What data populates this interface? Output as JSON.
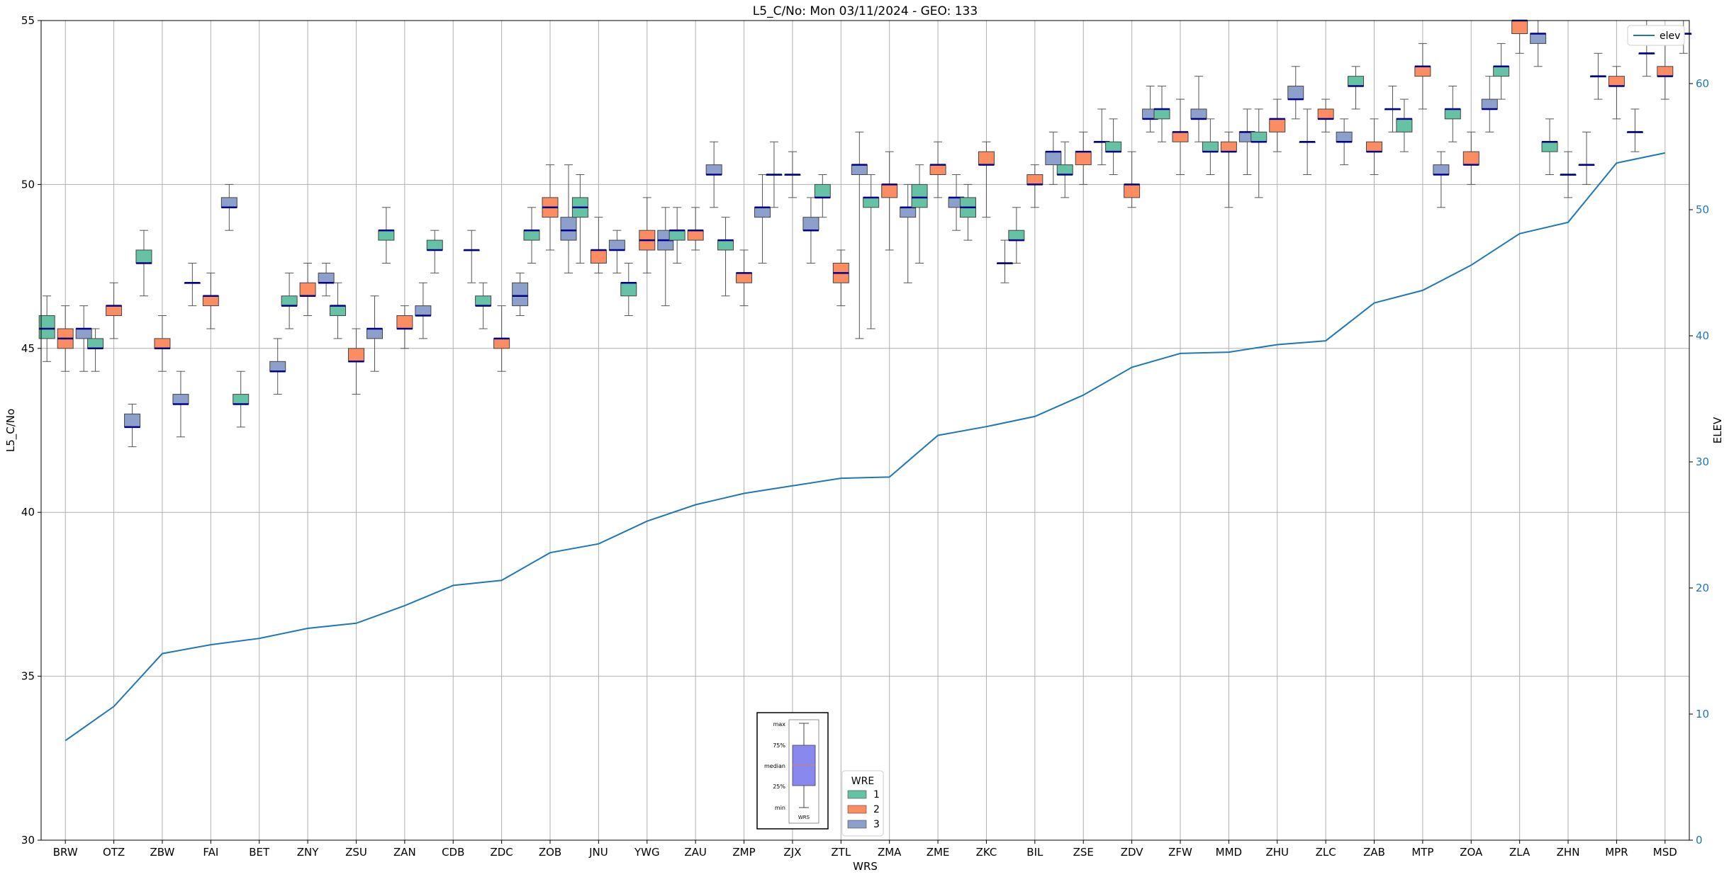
{
  "chart_data": {
    "type": "box",
    "title": "L5_C/No: Mon 03/11/2024 - GEO: 133",
    "xlabel": "WRS",
    "ylabel": "L5_C/No",
    "y2label": "ELEV",
    "ylim": [
      30,
      55
    ],
    "y2lim": [
      0,
      65
    ],
    "yticks": [
      30,
      35,
      40,
      45,
      50,
      55
    ],
    "y2ticks": [
      0,
      10,
      20,
      30,
      40,
      50,
      60
    ],
    "grid": true,
    "categories": [
      "BRW",
      "OTZ",
      "ZBW",
      "FAI",
      "BET",
      "ZNY",
      "ZSU",
      "ZAN",
      "CDB",
      "ZDC",
      "ZOB",
      "JNU",
      "YWG",
      "ZAU",
      "ZMP",
      "ZJX",
      "ZTL",
      "ZMA",
      "ZME",
      "ZKC",
      "BIL",
      "ZSE",
      "ZDV",
      "ZFW",
      "MMD",
      "ZHU",
      "ZLC",
      "ZAB",
      "MTP",
      "ZOA",
      "ZLA",
      "ZHN",
      "MPR",
      "MSD"
    ],
    "wre_colors": {
      "1": "#66c2a5",
      "2": "#fc8d62",
      "3": "#8da0cb"
    },
    "median_color": "#00008b",
    "elev_color": "#1f77b4",
    "boxes": [
      {
        "site": "BRW",
        "wre": "1",
        "min": 44.6,
        "q1": 45.3,
        "median": 45.6,
        "q3": 46.0,
        "max": 46.6
      },
      {
        "site": "BRW",
        "wre": "2",
        "min": 44.3,
        "q1": 45.0,
        "median": 45.3,
        "q3": 45.6,
        "max": 46.3
      },
      {
        "site": "BRW",
        "wre": "3",
        "min": 44.3,
        "q1": 45.3,
        "median": 45.6,
        "q3": 45.6,
        "max": 46.3
      },
      {
        "site": "OTZ",
        "wre": "1",
        "min": 44.3,
        "q1": 45.0,
        "median": 45.0,
        "q3": 45.3,
        "max": 45.6
      },
      {
        "site": "OTZ",
        "wre": "2",
        "min": 45.3,
        "q1": 46.0,
        "median": 46.3,
        "q3": 46.3,
        "max": 47.0
      },
      {
        "site": "OTZ",
        "wre": "3",
        "min": 42.0,
        "q1": 42.6,
        "median": 42.6,
        "q3": 43.0,
        "max": 43.3
      },
      {
        "site": "ZBW",
        "wre": "1",
        "min": 46.6,
        "q1": 47.6,
        "median": 47.6,
        "q3": 48.0,
        "max": 48.6
      },
      {
        "site": "ZBW",
        "wre": "2",
        "min": 44.3,
        "q1": 45.0,
        "median": 45.0,
        "q3": 45.3,
        "max": 46.0
      },
      {
        "site": "ZBW",
        "wre": "3",
        "min": 42.3,
        "q1": 43.3,
        "median": 43.3,
        "q3": 43.6,
        "max": 44.3
      },
      {
        "site": "FAI",
        "wre": "1",
        "min": 46.3,
        "q1": 47.0,
        "median": 47.0,
        "q3": 47.0,
        "max": 47.6
      },
      {
        "site": "FAI",
        "wre": "2",
        "min": 45.6,
        "q1": 46.3,
        "median": 46.6,
        "q3": 46.6,
        "max": 47.3
      },
      {
        "site": "FAI",
        "wre": "3",
        "min": 48.6,
        "q1": 49.3,
        "median": 49.3,
        "q3": 49.6,
        "max": 50.0
      },
      {
        "site": "BET",
        "wre": "1",
        "min": 42.6,
        "q1": 43.3,
        "median": 43.3,
        "q3": 43.6,
        "max": 44.3
      },
      {
        "site": "BET",
        "wre": "3",
        "min": 43.6,
        "q1": 44.3,
        "median": 44.3,
        "q3": 44.6,
        "max": 45.3
      },
      {
        "site": "ZNY",
        "wre": "1",
        "min": 45.6,
        "q1": 46.3,
        "median": 46.3,
        "q3": 46.6,
        "max": 47.3
      },
      {
        "site": "ZNY",
        "wre": "2",
        "min": 46.0,
        "q1": 46.6,
        "median": 46.6,
        "q3": 47.0,
        "max": 47.6
      },
      {
        "site": "ZNY",
        "wre": "3",
        "min": 46.6,
        "q1": 47.0,
        "median": 47.0,
        "q3": 47.3,
        "max": 47.6
      },
      {
        "site": "ZSU",
        "wre": "1",
        "min": 45.3,
        "q1": 46.0,
        "median": 46.3,
        "q3": 46.3,
        "max": 47.0
      },
      {
        "site": "ZSU",
        "wre": "2",
        "min": 43.6,
        "q1": 44.6,
        "median": 44.6,
        "q3": 45.0,
        "max": 45.6
      },
      {
        "site": "ZSU",
        "wre": "3",
        "min": 44.3,
        "q1": 45.3,
        "median": 45.6,
        "q3": 45.6,
        "max": 46.6
      },
      {
        "site": "ZAN",
        "wre": "1",
        "min": 47.6,
        "q1": 48.3,
        "median": 48.6,
        "q3": 48.6,
        "max": 49.3
      },
      {
        "site": "ZAN",
        "wre": "2",
        "min": 45.0,
        "q1": 45.6,
        "median": 45.6,
        "q3": 46.0,
        "max": 46.3
      },
      {
        "site": "ZAN",
        "wre": "3",
        "min": 45.3,
        "q1": 46.0,
        "median": 46.0,
        "q3": 46.3,
        "max": 47.0
      },
      {
        "site": "CDB",
        "wre": "1",
        "min": 47.3,
        "q1": 48.0,
        "median": 48.0,
        "q3": 48.3,
        "max": 48.6
      },
      {
        "site": "CDB",
        "wre": "3",
        "min": 47.0,
        "q1": 48.0,
        "median": 48.0,
        "q3": 48.0,
        "max": 48.6
      },
      {
        "site": "ZDC",
        "wre": "1",
        "min": 45.6,
        "q1": 46.3,
        "median": 46.3,
        "q3": 46.6,
        "max": 47.0
      },
      {
        "site": "ZDC",
        "wre": "2",
        "min": 44.3,
        "q1": 45.0,
        "median": 45.3,
        "q3": 45.3,
        "max": 46.3
      },
      {
        "site": "ZDC",
        "wre": "3",
        "min": 46.0,
        "q1": 46.3,
        "median": 46.6,
        "q3": 47.0,
        "max": 47.3
      },
      {
        "site": "ZOB",
        "wre": "1",
        "min": 47.6,
        "q1": 48.3,
        "median": 48.6,
        "q3": 48.6,
        "max": 49.3
      },
      {
        "site": "ZOB",
        "wre": "2",
        "min": 48.0,
        "q1": 49.0,
        "median": 49.3,
        "q3": 49.6,
        "max": 50.6
      },
      {
        "site": "ZOB",
        "wre": "3",
        "min": 47.3,
        "q1": 48.3,
        "median": 48.6,
        "q3": 49.0,
        "max": 50.6
      },
      {
        "site": "JNU",
        "wre": "1",
        "min": 47.6,
        "q1": 49.0,
        "median": 49.3,
        "q3": 49.6,
        "max": 50.3
      },
      {
        "site": "JNU",
        "wre": "2",
        "min": 47.3,
        "q1": 47.6,
        "median": 48.0,
        "q3": 48.0,
        "max": 49.0
      },
      {
        "site": "JNU",
        "wre": "3",
        "min": 47.3,
        "q1": 48.0,
        "median": 48.0,
        "q3": 48.3,
        "max": 48.6
      },
      {
        "site": "YWG",
        "wre": "1",
        "min": 46.0,
        "q1": 46.6,
        "median": 47.0,
        "q3": 47.0,
        "max": 47.6
      },
      {
        "site": "YWG",
        "wre": "2",
        "min": 47.3,
        "q1": 48.0,
        "median": 48.3,
        "q3": 48.6,
        "max": 49.6
      },
      {
        "site": "YWG",
        "wre": "3",
        "min": 46.3,
        "q1": 48.0,
        "median": 48.3,
        "q3": 48.6,
        "max": 49.3
      },
      {
        "site": "ZAU",
        "wre": "1",
        "min": 47.6,
        "q1": 48.3,
        "median": 48.6,
        "q3": 48.6,
        "max": 49.3
      },
      {
        "site": "ZAU",
        "wre": "2",
        "min": 48.0,
        "q1": 48.3,
        "median": 48.6,
        "q3": 48.6,
        "max": 49.3
      },
      {
        "site": "ZAU",
        "wre": "3",
        "min": 49.3,
        "q1": 50.3,
        "median": 50.3,
        "q3": 50.6,
        "max": 51.3
      },
      {
        "site": "ZMP",
        "wre": "1",
        "min": 46.6,
        "q1": 48.0,
        "median": 48.3,
        "q3": 48.3,
        "max": 49.0
      },
      {
        "site": "ZMP",
        "wre": "2",
        "min": 46.3,
        "q1": 47.0,
        "median": 47.3,
        "q3": 47.3,
        "max": 48.0
      },
      {
        "site": "ZMP",
        "wre": "3",
        "min": 47.6,
        "q1": 49.0,
        "median": 49.3,
        "q3": 49.3,
        "max": 50.3
      },
      {
        "site": "ZJX",
        "wre": "1",
        "min": 49.3,
        "q1": 50.3,
        "median": 50.3,
        "q3": 50.3,
        "max": 51.3
      },
      {
        "site": "ZJX",
        "wre": "2",
        "min": 49.6,
        "q1": 50.3,
        "median": 50.3,
        "q3": 50.3,
        "max": 51.0
      },
      {
        "site": "ZJX",
        "wre": "3",
        "min": 47.6,
        "q1": 48.6,
        "median": 48.6,
        "q3": 49.0,
        "max": 49.6
      },
      {
        "site": "ZTL",
        "wre": "1",
        "min": 49.0,
        "q1": 49.6,
        "median": 49.6,
        "q3": 50.0,
        "max": 50.3
      },
      {
        "site": "ZTL",
        "wre": "2",
        "min": 46.3,
        "q1": 47.0,
        "median": 47.3,
        "q3": 47.6,
        "max": 48.0
      },
      {
        "site": "ZTL",
        "wre": "3",
        "min": 45.3,
        "q1": 50.3,
        "median": 50.6,
        "q3": 50.6,
        "max": 51.6
      },
      {
        "site": "ZMA",
        "wre": "1",
        "min": 45.6,
        "q1": 49.3,
        "median": 49.6,
        "q3": 49.6,
        "max": 50.3
      },
      {
        "site": "ZMA",
        "wre": "2",
        "min": 48.0,
        "q1": 49.6,
        "median": 50.0,
        "q3": 50.0,
        "max": 51.0
      },
      {
        "site": "ZMA",
        "wre": "3",
        "min": 47.0,
        "q1": 49.0,
        "median": 49.3,
        "q3": 49.3,
        "max": 50.0
      },
      {
        "site": "ZME",
        "wre": "1",
        "min": 47.6,
        "q1": 49.3,
        "median": 49.6,
        "q3": 50.0,
        "max": 50.6
      },
      {
        "site": "ZME",
        "wre": "2",
        "min": 49.6,
        "q1": 50.3,
        "median": 50.6,
        "q3": 50.6,
        "max": 51.3
      },
      {
        "site": "ZME",
        "wre": "3",
        "min": 48.6,
        "q1": 49.3,
        "median": 49.6,
        "q3": 49.6,
        "max": 50.3
      },
      {
        "site": "ZKC",
        "wre": "1",
        "min": 48.3,
        "q1": 49.0,
        "median": 49.3,
        "q3": 49.6,
        "max": 50.0
      },
      {
        "site": "ZKC",
        "wre": "2",
        "min": 49.0,
        "q1": 50.6,
        "median": 50.6,
        "q3": 51.0,
        "max": 51.3
      },
      {
        "site": "ZKC",
        "wre": "3",
        "min": 47.0,
        "q1": 47.6,
        "median": 47.6,
        "q3": 47.6,
        "max": 48.3
      },
      {
        "site": "BIL",
        "wre": "1",
        "min": 47.6,
        "q1": 48.3,
        "median": 48.3,
        "q3": 48.6,
        "max": 49.3
      },
      {
        "site": "BIL",
        "wre": "2",
        "min": 49.3,
        "q1": 50.0,
        "median": 50.0,
        "q3": 50.3,
        "max": 50.6
      },
      {
        "site": "BIL",
        "wre": "3",
        "min": 50.0,
        "q1": 50.6,
        "median": 51.0,
        "q3": 51.0,
        "max": 51.6
      },
      {
        "site": "ZSE",
        "wre": "1",
        "min": 49.6,
        "q1": 50.3,
        "median": 50.3,
        "q3": 50.6,
        "max": 51.3
      },
      {
        "site": "ZSE",
        "wre": "2",
        "min": 50.0,
        "q1": 50.6,
        "median": 51.0,
        "q3": 51.0,
        "max": 51.6
      },
      {
        "site": "ZSE",
        "wre": "3",
        "min": 50.6,
        "q1": 51.3,
        "median": 51.3,
        "q3": 51.3,
        "max": 52.3
      },
      {
        "site": "ZDV",
        "wre": "1",
        "min": 50.3,
        "q1": 51.0,
        "median": 51.0,
        "q3": 51.3,
        "max": 52.0
      },
      {
        "site": "ZDV",
        "wre": "2",
        "min": 49.3,
        "q1": 49.6,
        "median": 50.0,
        "q3": 50.0,
        "max": 51.0
      },
      {
        "site": "ZDV",
        "wre": "3",
        "min": 51.6,
        "q1": 52.0,
        "median": 52.0,
        "q3": 52.3,
        "max": 53.0
      },
      {
        "site": "ZFW",
        "wre": "1",
        "min": 51.3,
        "q1": 52.0,
        "median": 52.3,
        "q3": 52.3,
        "max": 53.0
      },
      {
        "site": "ZFW",
        "wre": "2",
        "min": 50.3,
        "q1": 51.3,
        "median": 51.6,
        "q3": 51.6,
        "max": 52.6
      },
      {
        "site": "ZFW",
        "wre": "3",
        "min": 51.3,
        "q1": 52.0,
        "median": 52.0,
        "q3": 52.3,
        "max": 53.3
      },
      {
        "site": "MMD",
        "wre": "1",
        "min": 50.3,
        "q1": 51.0,
        "median": 51.0,
        "q3": 51.3,
        "max": 52.0
      },
      {
        "site": "MMD",
        "wre": "2",
        "min": 49.3,
        "q1": 51.0,
        "median": 51.0,
        "q3": 51.3,
        "max": 51.6
      },
      {
        "site": "MMD",
        "wre": "3",
        "min": 50.3,
        "q1": 51.3,
        "median": 51.6,
        "q3": 51.6,
        "max": 52.3
      },
      {
        "site": "ZHU",
        "wre": "1",
        "min": 49.6,
        "q1": 51.3,
        "median": 51.3,
        "q3": 51.6,
        "max": 52.3
      },
      {
        "site": "ZHU",
        "wre": "2",
        "min": 51.0,
        "q1": 51.6,
        "median": 52.0,
        "q3": 52.0,
        "max": 52.6
      },
      {
        "site": "ZHU",
        "wre": "3",
        "min": 52.0,
        "q1": 52.6,
        "median": 52.6,
        "q3": 53.0,
        "max": 53.6
      },
      {
        "site": "ZLC",
        "wre": "1",
        "min": 50.3,
        "q1": 51.3,
        "median": 51.3,
        "q3": 51.3,
        "max": 52.3
      },
      {
        "site": "ZLC",
        "wre": "2",
        "min": 51.6,
        "q1": 52.0,
        "median": 52.0,
        "q3": 52.3,
        "max": 52.6
      },
      {
        "site": "ZLC",
        "wre": "3",
        "min": 50.6,
        "q1": 51.3,
        "median": 51.3,
        "q3": 51.6,
        "max": 52.0
      },
      {
        "site": "ZAB",
        "wre": "1",
        "min": 52.3,
        "q1": 53.0,
        "median": 53.0,
        "q3": 53.3,
        "max": 53.6
      },
      {
        "site": "ZAB",
        "wre": "2",
        "min": 50.3,
        "q1": 51.0,
        "median": 51.0,
        "q3": 51.3,
        "max": 52.0
      },
      {
        "site": "ZAB",
        "wre": "3",
        "min": 51.6,
        "q1": 52.3,
        "median": 52.3,
        "q3": 52.3,
        "max": 53.0
      },
      {
        "site": "MTP",
        "wre": "1",
        "min": 51.0,
        "q1": 51.6,
        "median": 52.0,
        "q3": 52.0,
        "max": 52.6
      },
      {
        "site": "MTP",
        "wre": "2",
        "min": 52.3,
        "q1": 53.3,
        "median": 53.6,
        "q3": 53.6,
        "max": 54.3
      },
      {
        "site": "MTP",
        "wre": "3",
        "min": 49.3,
        "q1": 50.3,
        "median": 50.3,
        "q3": 50.6,
        "max": 51.0
      },
      {
        "site": "ZOA",
        "wre": "1",
        "min": 51.3,
        "q1": 52.0,
        "median": 52.3,
        "q3": 52.3,
        "max": 53.0
      },
      {
        "site": "ZOA",
        "wre": "2",
        "min": 50.0,
        "q1": 50.6,
        "median": 50.6,
        "q3": 51.0,
        "max": 51.6
      },
      {
        "site": "ZOA",
        "wre": "3",
        "min": 51.6,
        "q1": 52.3,
        "median": 52.3,
        "q3": 52.6,
        "max": 53.3
      },
      {
        "site": "ZLA",
        "wre": "1",
        "min": 52.6,
        "q1": 53.3,
        "median": 53.6,
        "q3": 53.6,
        "max": 54.3
      },
      {
        "site": "ZLA",
        "wre": "2",
        "min": 54.0,
        "q1": 54.6,
        "median": 55.0,
        "q3": 55.0,
        "max": 55.0
      },
      {
        "site": "ZLA",
        "wre": "3",
        "min": 53.6,
        "q1": 54.3,
        "median": 54.6,
        "q3": 54.6,
        "max": 55.0
      },
      {
        "site": "ZHN",
        "wre": "1",
        "min": 50.3,
        "q1": 51.0,
        "median": 51.3,
        "q3": 51.3,
        "max": 52.0
      },
      {
        "site": "ZHN",
        "wre": "2",
        "min": 49.6,
        "q1": 50.3,
        "median": 50.3,
        "q3": 50.3,
        "max": 51.0
      },
      {
        "site": "ZHN",
        "wre": "3",
        "min": 50.0,
        "q1": 50.6,
        "median": 50.6,
        "q3": 50.6,
        "max": 51.6
      },
      {
        "site": "MPR",
        "wre": "1",
        "min": 52.6,
        "q1": 53.3,
        "median": 53.3,
        "q3": 53.3,
        "max": 54.0
      },
      {
        "site": "MPR",
        "wre": "2",
        "min": 52.0,
        "q1": 53.0,
        "median": 53.0,
        "q3": 53.3,
        "max": 53.6
      },
      {
        "site": "MPR",
        "wre": "3",
        "min": 51.0,
        "q1": 51.6,
        "median": 51.6,
        "q3": 51.6,
        "max": 52.3
      },
      {
        "site": "MSD",
        "wre": "1",
        "min": 53.3,
        "q1": 54.0,
        "median": 54.0,
        "q3": 54.0,
        "max": 55.0
      },
      {
        "site": "MSD",
        "wre": "2",
        "min": 52.6,
        "q1": 53.3,
        "median": 53.3,
        "q3": 53.6,
        "max": 54.3
      },
      {
        "site": "MSD",
        "wre": "3",
        "min": 54.0,
        "q1": 54.6,
        "median": 54.6,
        "q3": 54.6,
        "max": 55.0
      }
    ],
    "elev": {
      "name": "elev",
      "values": [
        7.9,
        10.6,
        14.8,
        15.5,
        16.0,
        16.8,
        17.2,
        18.6,
        20.2,
        20.6,
        22.8,
        23.5,
        25.3,
        26.6,
        27.5,
        28.1,
        28.7,
        28.8,
        32.1,
        32.8,
        33.6,
        35.3,
        37.5,
        38.6,
        38.7,
        39.3,
        39.6,
        42.6,
        43.6,
        45.6,
        48.1,
        49.0,
        53.7,
        54.5
      ]
    },
    "legend": {
      "wre_title": "WRE",
      "wre_entries": [
        "1",
        "2",
        "3"
      ],
      "elev_label": "elev",
      "elev_placement": "top-right",
      "wre_placement": "bottom-center"
    },
    "key_inset": {
      "labels": [
        "max",
        "75%",
        "median",
        "25%",
        "min"
      ],
      "xlabel": "WRS"
    }
  }
}
